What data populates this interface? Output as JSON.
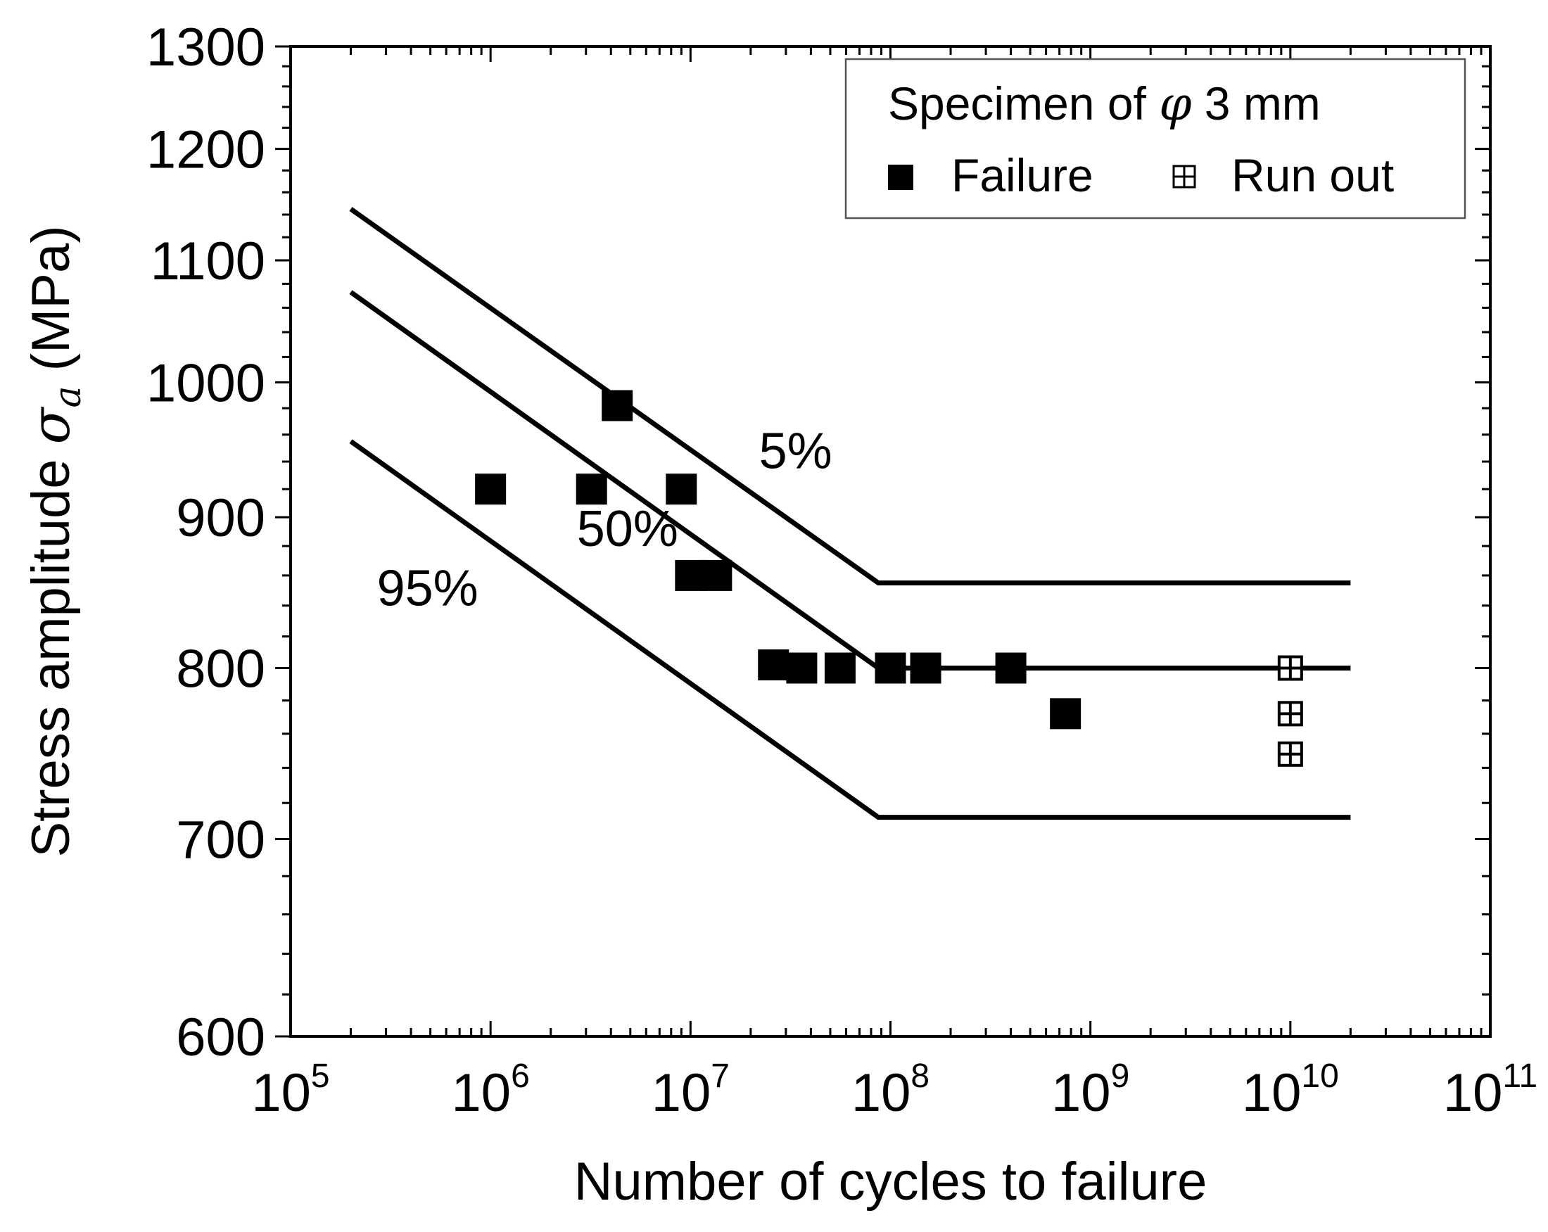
{
  "chart_data": {
    "type": "scatter",
    "xlabel": "Number of cycles to failure",
    "ylabel_main": "Stress amplitude ",
    "ylabel_symbol": "σ",
    "ylabel_subscript": "a",
    "ylabel_unit": " (MPa)",
    "xscale": "log",
    "yscale": "log",
    "xlim": [
      100000,
      100000000000
    ],
    "ylim": [
      600,
      1300
    ],
    "x_ticks": [
      {
        "value": 100000,
        "base": "10",
        "exp": "5"
      },
      {
        "value": 1000000,
        "base": "10",
        "exp": "6"
      },
      {
        "value": 10000000,
        "base": "10",
        "exp": "7"
      },
      {
        "value": 100000000,
        "base": "10",
        "exp": "8"
      },
      {
        "value": 1000000000,
        "base": "10",
        "exp": "9"
      },
      {
        "value": 10000000000,
        "base": "10",
        "exp": "10"
      },
      {
        "value": 100000000000,
        "base": "10",
        "exp": "11"
      }
    ],
    "y_ticks": [
      {
        "value": 600,
        "label": "600"
      },
      {
        "value": 700,
        "label": "700"
      },
      {
        "value": 800,
        "label": "800"
      },
      {
        "value": 900,
        "label": "900"
      },
      {
        "value": 1000,
        "label": "1000"
      },
      {
        "value": 1100,
        "label": "1100"
      },
      {
        "value": 1200,
        "label": "1200"
      },
      {
        "value": 1300,
        "label": "1300"
      }
    ],
    "legend": {
      "title_prefix": "Specimen of ",
      "title_symbol": "φ",
      "title_suffix": " 3 mm",
      "failure_label": "Failure",
      "runout_label": "Run out",
      "position": "top-right"
    },
    "series": [
      {
        "name": "Failure",
        "marker": "filled-square",
        "points": [
          [
            1000000,
            920
          ],
          [
            3200000,
            920
          ],
          [
            4300000,
            982
          ],
          [
            9000000,
            920
          ],
          [
            10000000,
            860
          ],
          [
            13500000,
            860
          ],
          [
            26000000,
            802
          ],
          [
            36000000,
            800
          ],
          [
            56000000,
            800
          ],
          [
            100000000,
            800
          ],
          [
            150000000,
            800
          ],
          [
            400000000,
            800
          ],
          [
            750000000,
            772
          ]
        ]
      },
      {
        "name": "Run out",
        "marker": "crossed-square",
        "points": [
          [
            10000000000,
            800
          ],
          [
            10000000000,
            772
          ],
          [
            10000000000,
            748
          ]
        ]
      }
    ],
    "curves": [
      {
        "name": "5%",
        "label": "5%",
        "points": [
          [
            200000,
            1145
          ],
          [
            87000000,
            855
          ],
          [
            20000000000,
            855
          ]
        ],
        "label_at": [
          22000000,
          935
        ]
      },
      {
        "name": "50%",
        "label": "50%",
        "points": [
          [
            200000,
            1073
          ],
          [
            87000000,
            800
          ],
          [
            20000000000,
            800
          ]
        ],
        "label_at": [
          2700000,
          880
        ]
      },
      {
        "name": "95%",
        "label": "95%",
        "points": [
          [
            200000,
            955
          ],
          [
            87000000,
            712
          ],
          [
            20000000000,
            712
          ]
        ],
        "label_at": [
          270000,
          840
        ]
      }
    ],
    "colors": {
      "ink": "#000000",
      "background": "#ffffff"
    }
  }
}
